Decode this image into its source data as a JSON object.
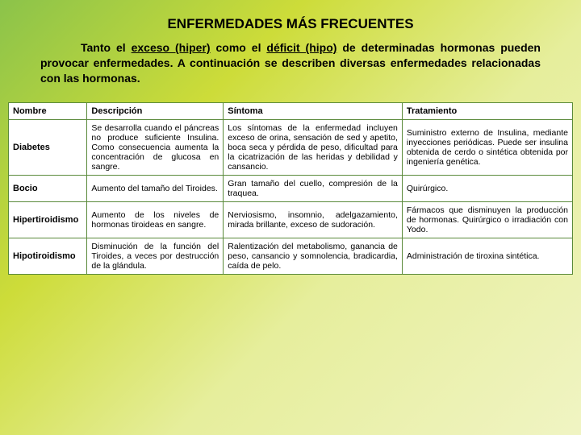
{
  "title": "ENFERMEDADES MÁS FRECUENTES",
  "intro_parts": {
    "p1": "Tanto el ",
    "u1": "exceso (hiper)",
    "p2": " como el ",
    "u2": "déficit (hipo)",
    "p3": " de determinadas hormonas pueden provocar enfermedades. A continuación se describen diversas enfermedades relacionadas con las hormonas."
  },
  "columns": [
    "Nombre",
    "Descripción",
    "Síntoma",
    "Tratamiento"
  ],
  "rows": [
    {
      "name": "Diabetes",
      "desc": "Se desarrolla cuando el páncreas no produce suficiente Insulina. Como consecuencia aumenta la concentración de glucosa en sangre.",
      "sym": "Los síntomas de la enfermedad incluyen exceso de orina, sensación de sed y apetito, boca seca y pérdida de peso, dificultad para la cicatrización de las heridas y debilidad y cansancio.",
      "treat": "Suministro externo de Insulina, mediante inyecciones periódicas. Puede ser insulina obtenida de cerdo o sintética obtenida por ingeniería genética."
    },
    {
      "name": "Bocio",
      "desc": "Aumento del tamaño del Tiroides.",
      "sym": "Gran tamaño del cuello, compresión de la traquea.",
      "treat": "Quirúrgico."
    },
    {
      "name": "Hipertiroidismo",
      "desc": "Aumento de los niveles de hormonas tiroideas en sangre.",
      "sym": "Nerviosismo, insomnio, adelgazamiento, mirada brillante, exceso de sudoración.",
      "treat": "Fármacos que disminuyen la producción de hormonas. Quirúrgico o irradiación con Yodo."
    },
    {
      "name": "Hipotiroidismo",
      "desc": "Disminución de la función del Tiroides, a veces por destrucción de la glándula.",
      "sym": "Ralentización del metabolismo, ganancia de peso, cansancio y somnolencia, bradicardia, caída de pelo.",
      "treat": "Administración de tiroxina sintética."
    }
  ]
}
